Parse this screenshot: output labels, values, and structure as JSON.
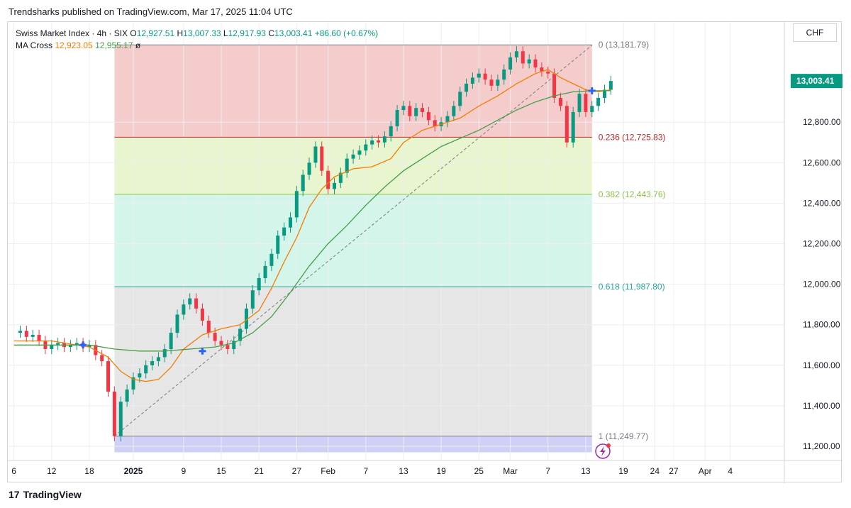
{
  "header": {
    "publisher_line": "Trendsharks published on TradingView.com, Mar 17, 2025 11:04 UTC"
  },
  "legend": {
    "symbol": "Swiss Market Index · 4h · SIX",
    "o_label": "O",
    "o": "12,927.51",
    "h_label": "H",
    "h": "13,007.33",
    "l_label": "L",
    "l": "12,917.93",
    "c_label": "C",
    "c": "13,003.41",
    "change": "+86.60 (+0.67%)",
    "ma_name": "MA Cross",
    "ma_fast": "12,923.05",
    "ma_slow": "12,955.17",
    "ma_extra": "ø"
  },
  "currency": "CHF",
  "logo_text": "TradingView",
  "colors": {
    "up": "#089981",
    "down": "#f23645",
    "ma_fast": "#f57c00",
    "ma_slow": "#43a047",
    "fib_0_236": "#f4cccc",
    "fib_236_382": "#e8f5cf",
    "fib_382_618": "#d4f5ea",
    "fib_618_1": "#e6e6e6",
    "fib_below_1": "#d0d0f7"
  },
  "chart_data": {
    "type": "candlestick",
    "title": "Swiss Market Index · 4h · SIX",
    "y_axis": {
      "range": [
        11150,
        13300
      ],
      "ticks": [
        "11,200.00",
        "11,400.00",
        "11,600.00",
        "11,800.00",
        "12,000.00",
        "12,200.00",
        "12,400.00",
        "12,600.00",
        "12,800.00"
      ],
      "tick_values": [
        11200,
        11400,
        11600,
        11800,
        12000,
        12200,
        12400,
        12600,
        12800
      ],
      "current_price_label": "13,003.41",
      "current_price": 13003.41
    },
    "x_axis": {
      "ticks": [
        "6",
        "12",
        "18",
        "2025",
        "9",
        "15",
        "21",
        "27",
        "Feb",
        "7",
        "13",
        "19",
        "25",
        "Mar",
        "7",
        "13",
        "19",
        "24",
        "27",
        "Apr",
        "4"
      ],
      "tick_days": [
        -26,
        -20,
        -14,
        -7,
        1,
        7,
        13,
        19,
        24,
        30,
        36,
        42,
        48,
        53,
        59,
        65,
        71,
        76,
        79,
        84,
        88
      ]
    },
    "fibonacci": [
      {
        "level": "0",
        "price": 13181.79,
        "label": "0 (13,181.79)",
        "color": "#787b86"
      },
      {
        "level": "0.236",
        "price": 12725.83,
        "label": "0.236 (12,725.83)",
        "color": "#c62828"
      },
      {
        "level": "0.382",
        "price": 12443.76,
        "label": "0.382 (12,443.76)",
        "color": "#8bc34a"
      },
      {
        "level": "0.618",
        "price": 11987.8,
        "label": "0.618 (11,987.80)",
        "color": "#26a69a"
      },
      {
        "level": "1",
        "price": 11249.77,
        "label": "1 (11,249.77)",
        "color": "#787b86"
      }
    ],
    "closes": [
      [
        -26,
        11760
      ],
      [
        -25,
        11770
      ],
      [
        -24,
        11740
      ],
      [
        -23,
        11750
      ],
      [
        -22,
        11720
      ],
      [
        -21,
        11680
      ],
      [
        -20,
        11700
      ],
      [
        -19,
        11710
      ],
      [
        -18,
        11690
      ],
      [
        -17,
        11700
      ],
      [
        -16,
        11710
      ],
      [
        -15,
        11690
      ],
      [
        -14,
        11700
      ],
      [
        -13,
        11650
      ],
      [
        -12,
        11620
      ],
      [
        -11,
        11470
      ],
      [
        -10,
        11250
      ],
      [
        -9,
        11420
      ],
      [
        -8,
        11480
      ],
      [
        -7,
        11540
      ],
      [
        -6,
        11560
      ],
      [
        -5,
        11600
      ],
      [
        -4,
        11620
      ],
      [
        -3,
        11640
      ],
      [
        -2,
        11680
      ],
      [
        -1,
        11760
      ],
      [
        0,
        11850
      ],
      [
        1,
        11900
      ],
      [
        2,
        11930
      ],
      [
        3,
        11880
      ],
      [
        4,
        11820
      ],
      [
        5,
        11760
      ],
      [
        6,
        11720
      ],
      [
        7,
        11700
      ],
      [
        8,
        11680
      ],
      [
        9,
        11720
      ],
      [
        10,
        11780
      ],
      [
        11,
        11880
      ],
      [
        12,
        11970
      ],
      [
        13,
        12030
      ],
      [
        14,
        12090
      ],
      [
        15,
        12150
      ],
      [
        16,
        12240
      ],
      [
        17,
        12280
      ],
      [
        18,
        12330
      ],
      [
        19,
        12460
      ],
      [
        20,
        12540
      ],
      [
        21,
        12600
      ],
      [
        22,
        12680
      ],
      [
        23,
        12560
      ],
      [
        24,
        12470
      ],
      [
        25,
        12500
      ],
      [
        26,
        12550
      ],
      [
        27,
        12620
      ],
      [
        28,
        12640
      ],
      [
        29,
        12660
      ],
      [
        30,
        12690
      ],
      [
        31,
        12710
      ],
      [
        32,
        12700
      ],
      [
        33,
        12730
      ],
      [
        34,
        12780
      ],
      [
        35,
        12860
      ],
      [
        36,
        12880
      ],
      [
        37,
        12830
      ],
      [
        38,
        12870
      ],
      [
        39,
        12850
      ],
      [
        40,
        12810
      ],
      [
        41,
        12780
      ],
      [
        42,
        12800
      ],
      [
        43,
        12830
      ],
      [
        44,
        12880
      ],
      [
        45,
        12950
      ],
      [
        46,
        12990
      ],
      [
        47,
        13020
      ],
      [
        48,
        13040
      ],
      [
        49,
        13010
      ],
      [
        50,
        12980
      ],
      [
        51,
        13010
      ],
      [
        52,
        13060
      ],
      [
        53,
        13120
      ],
      [
        54,
        13150
      ],
      [
        55,
        13090
      ],
      [
        56,
        13110
      ],
      [
        57,
        13070
      ],
      [
        58,
        13050
      ],
      [
        59,
        13040
      ],
      [
        60,
        12920
      ],
      [
        61,
        12880
      ],
      [
        62,
        12700
      ],
      [
        63,
        12850
      ],
      [
        64,
        12940
      ],
      [
        65,
        12850
      ],
      [
        66,
        12880
      ],
      [
        67,
        12920
      ],
      [
        68,
        12960
      ],
      [
        69,
        13003.41
      ]
    ],
    "series": [
      {
        "name": "MA Cross fast",
        "color": "#f57c00",
        "values": [
          [
            -26,
            11720
          ],
          [
            -20,
            11720
          ],
          [
            -14,
            11690
          ],
          [
            -11,
            11640
          ],
          [
            -9,
            11570
          ],
          [
            -7,
            11530
          ],
          [
            -5,
            11520
          ],
          [
            -3,
            11530
          ],
          [
            -1,
            11590
          ],
          [
            1,
            11680
          ],
          [
            4,
            11750
          ],
          [
            7,
            11780
          ],
          [
            10,
            11800
          ],
          [
            13,
            11870
          ],
          [
            15,
            11980
          ],
          [
            17,
            12110
          ],
          [
            19,
            12230
          ],
          [
            21,
            12380
          ],
          [
            23,
            12470
          ],
          [
            25,
            12530
          ],
          [
            28,
            12570
          ],
          [
            31,
            12580
          ],
          [
            34,
            12620
          ],
          [
            36,
            12700
          ],
          [
            39,
            12760
          ],
          [
            42,
            12790
          ],
          [
            45,
            12820
          ],
          [
            48,
            12880
          ],
          [
            51,
            12930
          ],
          [
            54,
            12990
          ],
          [
            57,
            13040
          ],
          [
            59,
            13060
          ],
          [
            61,
            13020
          ],
          [
            63,
            12990
          ],
          [
            65,
            12960
          ],
          [
            67,
            12950
          ],
          [
            69,
            12960
          ]
        ]
      },
      {
        "name": "MA Cross slow",
        "color": "#43a047",
        "values": [
          [
            -26,
            11700
          ],
          [
            -20,
            11700
          ],
          [
            -14,
            11700
          ],
          [
            -10,
            11680
          ],
          [
            -6,
            11670
          ],
          [
            -2,
            11670
          ],
          [
            2,
            11680
          ],
          [
            6,
            11690
          ],
          [
            9,
            11710
          ],
          [
            12,
            11760
          ],
          [
            15,
            11840
          ],
          [
            18,
            11960
          ],
          [
            21,
            12090
          ],
          [
            24,
            12200
          ],
          [
            27,
            12290
          ],
          [
            30,
            12390
          ],
          [
            33,
            12480
          ],
          [
            36,
            12560
          ],
          [
            39,
            12620
          ],
          [
            42,
            12680
          ],
          [
            45,
            12720
          ],
          [
            48,
            12760
          ],
          [
            51,
            12810
          ],
          [
            54,
            12860
          ],
          [
            57,
            12900
          ],
          [
            60,
            12930
          ],
          [
            63,
            12950
          ],
          [
            66,
            12955
          ],
          [
            69,
            12955
          ]
        ]
      }
    ],
    "ma_cross_markers": [
      [
        -15,
        11700
      ],
      [
        4,
        11670
      ],
      [
        66,
        12955
      ]
    ],
    "trend_line": [
      [
        -10,
        11250
      ],
      [
        66,
        13180
      ]
    ]
  }
}
